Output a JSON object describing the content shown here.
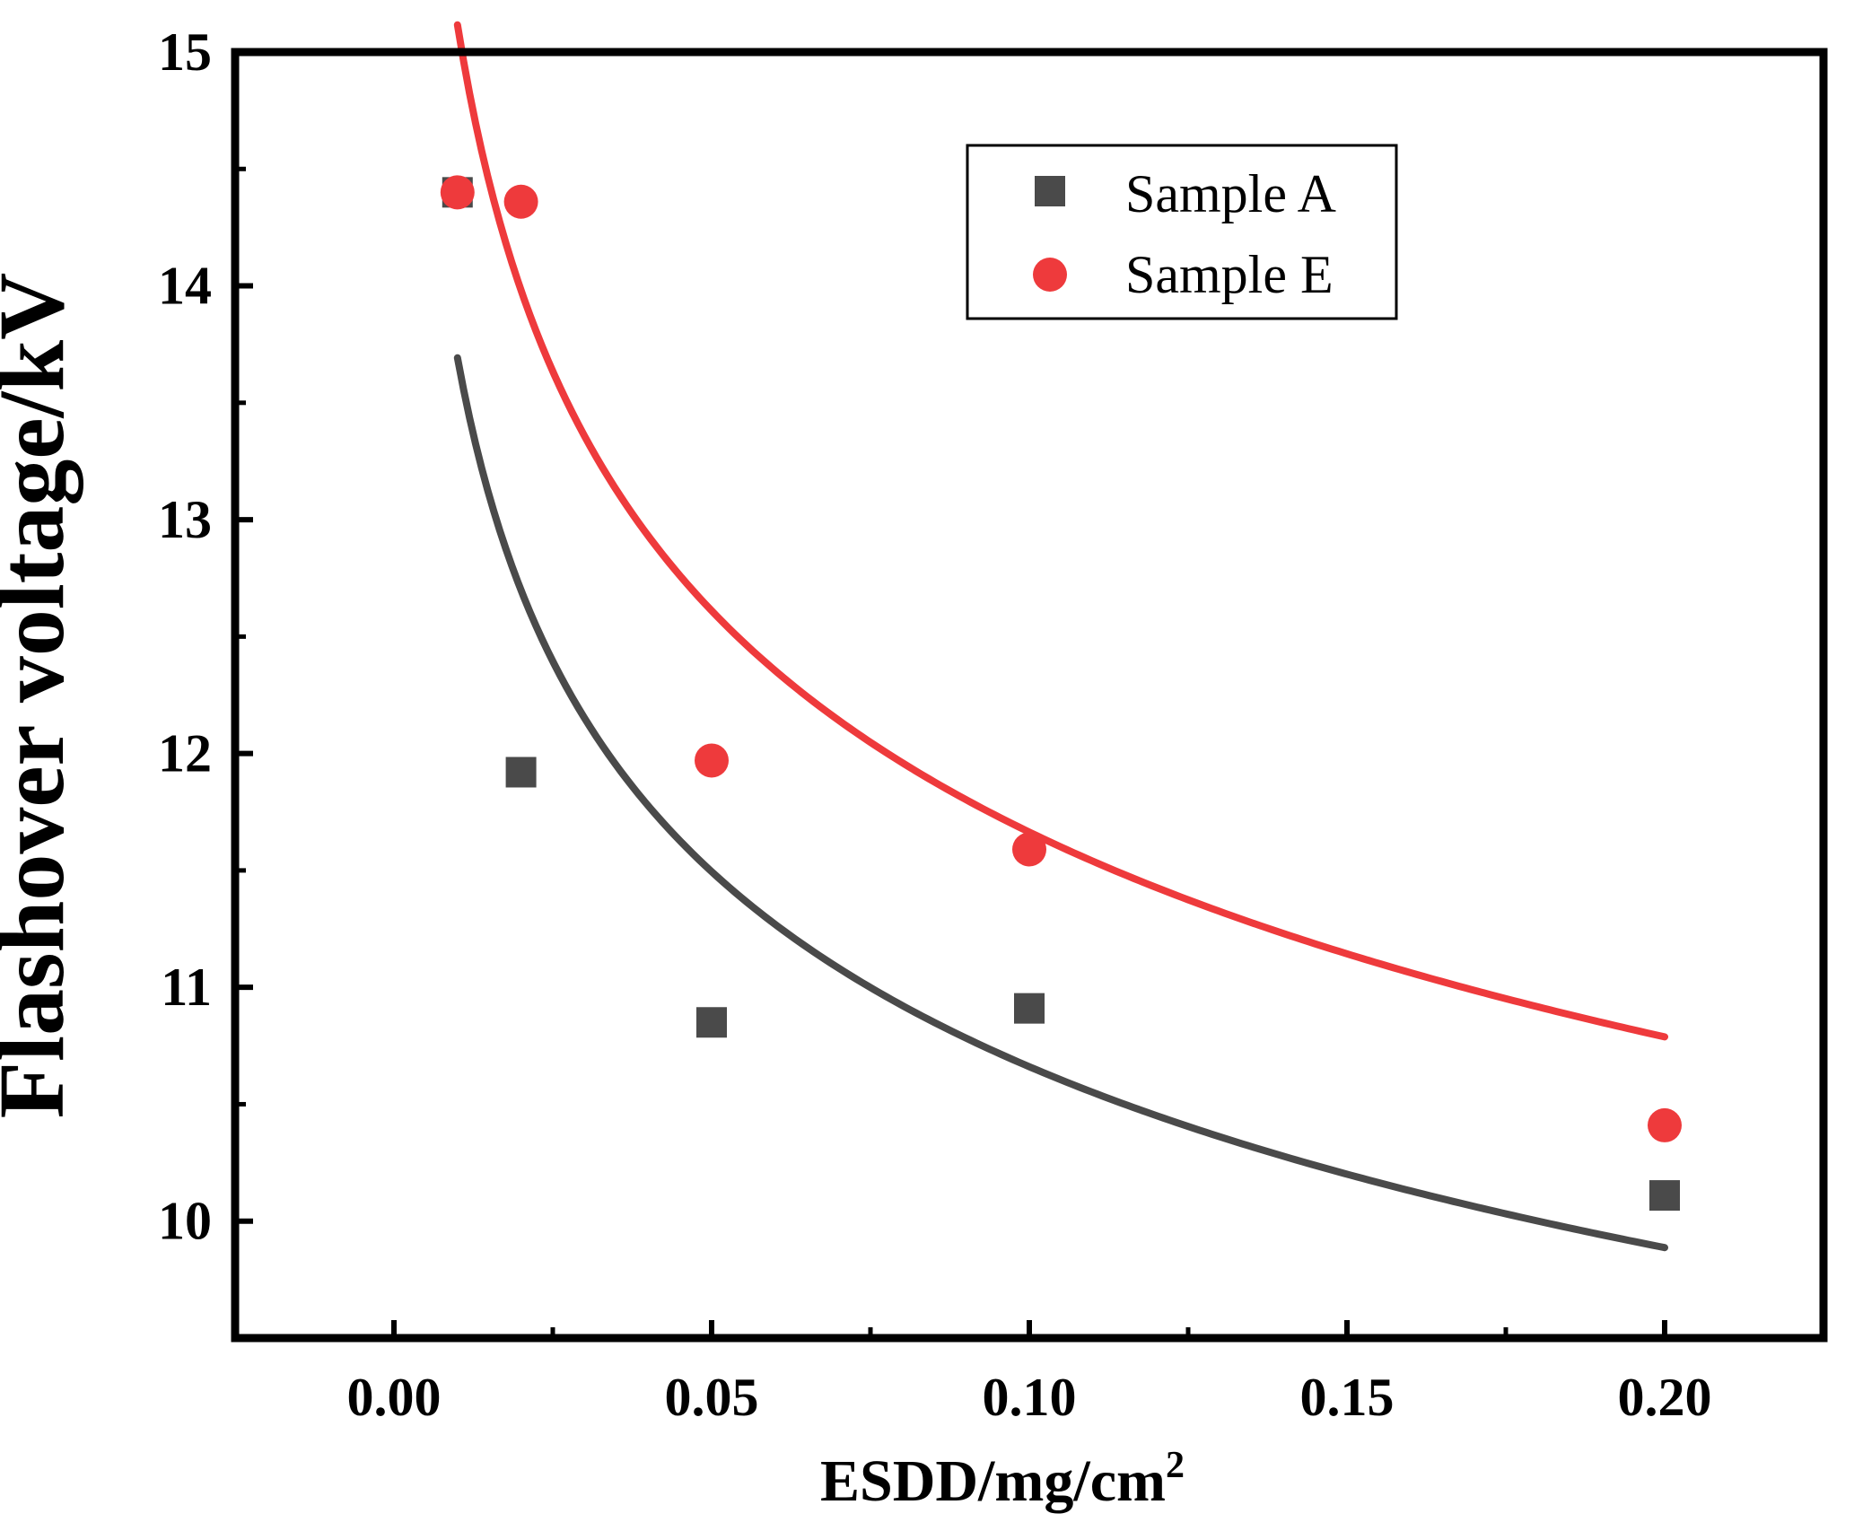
{
  "chart_data": {
    "type": "scatter",
    "title": "",
    "xlabel": "ESDD/mg/cm",
    "xlabel_superscript": "2",
    "ylabel": "Flashover voltage/kV",
    "xlim": [
      -0.025,
      0.225
    ],
    "ylim": [
      9.5,
      15
    ],
    "xticks": [
      0.0,
      0.05,
      0.1,
      0.15,
      0.2
    ],
    "xtick_labels": [
      "0.00",
      "0.05",
      "0.10",
      "0.15",
      "0.20"
    ],
    "xminor": [
      0.025,
      0.075,
      0.125,
      0.175
    ],
    "yticks": [
      10,
      11,
      12,
      13,
      14,
      15
    ],
    "ytick_labels": [
      "10",
      "11",
      "12",
      "13",
      "14",
      "15"
    ],
    "yminor": [
      10.5,
      11.5,
      12.5,
      13.5,
      14.5
    ],
    "grid": false,
    "legend_position": "top-right",
    "series": [
      {
        "name": "Sample A",
        "marker": "square",
        "color": "#4a4a4a",
        "x": [
          0.01,
          0.02,
          0.05,
          0.1,
          0.2
        ],
        "y": [
          14.4,
          11.92,
          10.85,
          10.91,
          10.11
        ],
        "fit": {
          "type": "power",
          "a": 8.3,
          "b": -0.1087,
          "x_range": [
            0.01,
            0.2
          ]
        }
      },
      {
        "name": "Sample E",
        "marker": "circle",
        "color": "#ee3a3c",
        "x": [
          0.01,
          0.02,
          0.05,
          0.1,
          0.2
        ],
        "y": [
          14.4,
          14.36,
          11.97,
          11.59,
          10.41
        ],
        "fit": {
          "type": "power",
          "a": 9.0,
          "b": -0.1126,
          "x_range": [
            0.01,
            0.2
          ]
        }
      }
    ]
  }
}
